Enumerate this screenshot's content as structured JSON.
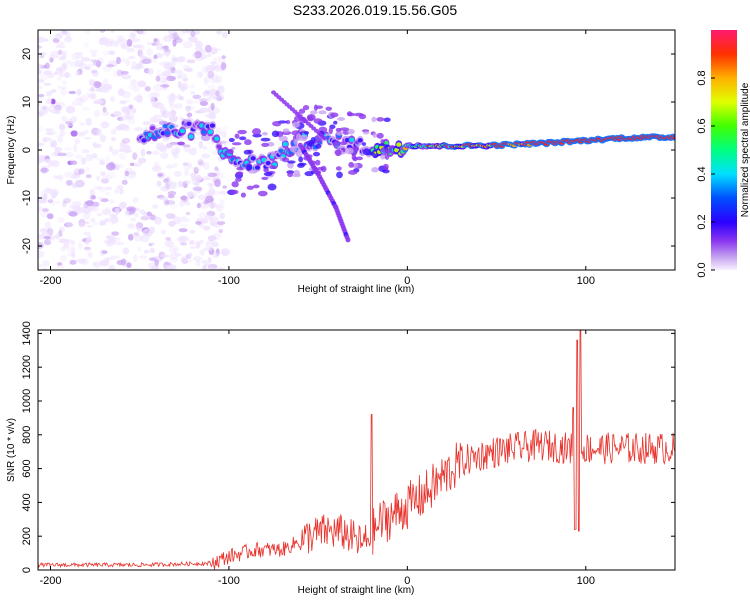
{
  "title": "S233.2026.019.15.56.G05",
  "chart_data": [
    {
      "type": "heatmap",
      "xlabel": "Height of straight line (km)",
      "ylabel": "Frequency (Hz)",
      "xlim": [
        -207,
        150
      ],
      "ylim": [
        -25,
        25
      ],
      "xticks": [
        -200,
        -100,
        0,
        100
      ],
      "yticks": [
        -20,
        -10,
        0,
        10,
        20
      ],
      "colorbar": {
        "label": "Normalized spectral amplitude",
        "ticks": [
          0.0,
          0.2,
          0.4,
          0.6,
          0.8
        ],
        "range": [
          0,
          1
        ]
      },
      "ridge": [
        {
          "x": -145,
          "f": 3.5
        },
        {
          "x": -130,
          "f": 4
        },
        {
          "x": -110,
          "f": 4.5
        },
        {
          "x": -100,
          "f": -2
        },
        {
          "x": -88,
          "f": -3
        },
        {
          "x": -75,
          "f": -2
        },
        {
          "x": -60,
          "f": 2
        },
        {
          "x": -45,
          "f": 2
        },
        {
          "x": -30,
          "f": 1
        },
        {
          "x": -15,
          "f": 0
        },
        {
          "x": 0,
          "f": 1
        },
        {
          "x": 20,
          "f": 0.8
        },
        {
          "x": 50,
          "f": 1
        },
        {
          "x": 80,
          "f": 1.5
        },
        {
          "x": 100,
          "f": 2
        },
        {
          "x": 120,
          "f": 2.5
        },
        {
          "x": 150,
          "f": 2.7
        }
      ],
      "descending_arc": [
        {
          "x": -60,
          "f": 1
        },
        {
          "x": -50,
          "f": -5
        },
        {
          "x": -40,
          "f": -12
        },
        {
          "x": -33,
          "f": -19
        }
      ]
    },
    {
      "type": "line",
      "xlabel": "Height of straight line (km)",
      "ylabel": "SNR (10 * v/v)",
      "xlim": [
        -207,
        150
      ],
      "ylim": [
        0,
        1420
      ],
      "xticks": [
        -200,
        -100,
        0,
        100
      ],
      "yticks": [
        0,
        200,
        400,
        600,
        800,
        1000,
        1200,
        1400
      ],
      "color": "#e8322c",
      "trend": [
        {
          "x": -207,
          "y": 30
        },
        {
          "x": -150,
          "y": 30
        },
        {
          "x": -110,
          "y": 40
        },
        {
          "x": -100,
          "y": 80
        },
        {
          "x": -85,
          "y": 120
        },
        {
          "x": -70,
          "y": 120
        },
        {
          "x": -55,
          "y": 200
        },
        {
          "x": -45,
          "y": 230
        },
        {
          "x": -35,
          "y": 220
        },
        {
          "x": -25,
          "y": 150
        },
        {
          "x": -15,
          "y": 280
        },
        {
          "x": 0,
          "y": 380
        },
        {
          "x": 10,
          "y": 450
        },
        {
          "x": 20,
          "y": 550
        },
        {
          "x": 30,
          "y": 640
        },
        {
          "x": 45,
          "y": 690
        },
        {
          "x": 60,
          "y": 720
        },
        {
          "x": 75,
          "y": 740
        },
        {
          "x": 90,
          "y": 720
        },
        {
          "x": 100,
          "y": 720
        },
        {
          "x": 120,
          "y": 720
        },
        {
          "x": 150,
          "y": 720
        }
      ],
      "spikes": [
        {
          "x": -20,
          "y": 920
        },
        {
          "x": 93,
          "y": 960
        },
        {
          "x": 95,
          "y": 1360
        },
        {
          "x": 97,
          "y": 1420
        },
        {
          "x": 96,
          "y": 230
        },
        {
          "x": 94,
          "y": 240
        }
      ]
    }
  ]
}
